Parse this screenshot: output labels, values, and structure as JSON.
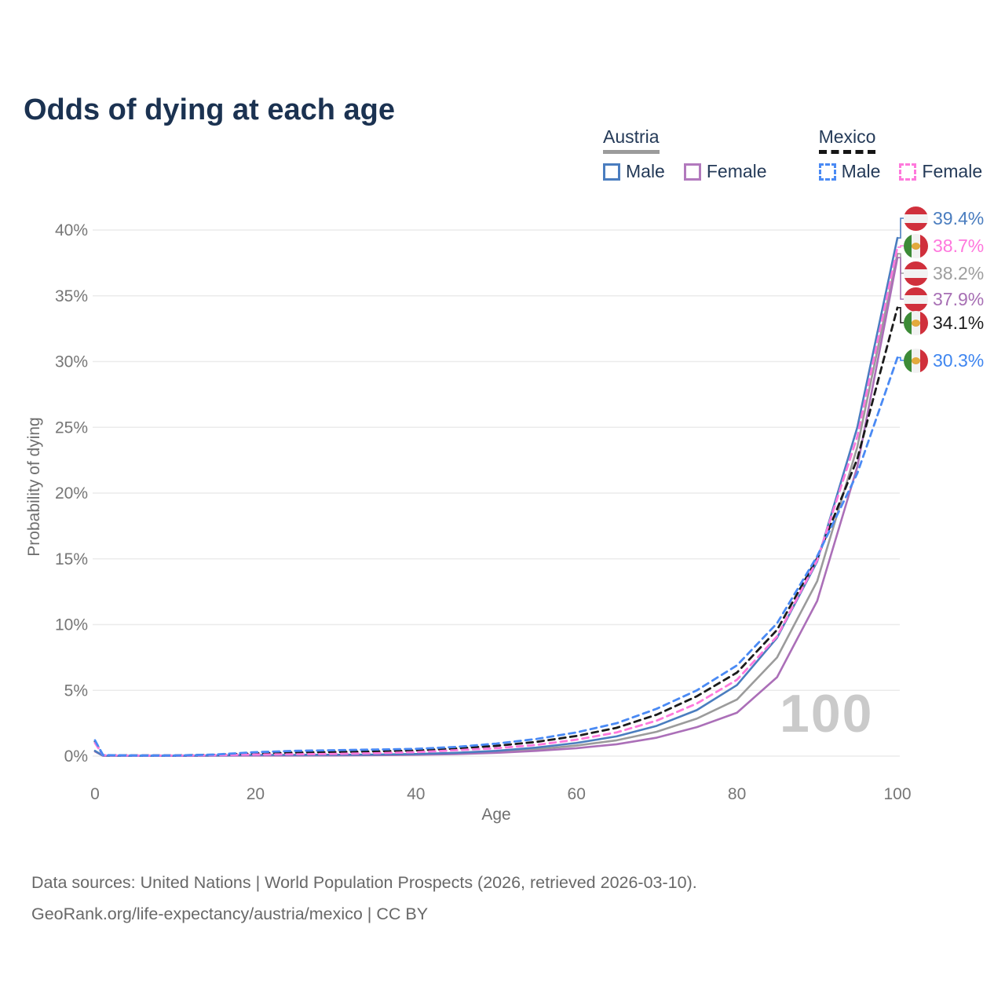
{
  "title": "Odds of dying at each age",
  "legend": {
    "austria": {
      "label": "Austria",
      "male": "Male",
      "female": "Female"
    },
    "mexico": {
      "label": "Mexico",
      "male": "Male",
      "female": "Female"
    }
  },
  "watermark": "100",
  "end_labels": [
    {
      "flag": "austria",
      "value": "39.4%",
      "color": "#4a7dbf"
    },
    {
      "flag": "mexico",
      "value": "38.7%",
      "color": "#ff77dd"
    },
    {
      "flag": "austria",
      "value": "38.2%",
      "color": "#9e9e9e"
    },
    {
      "flag": "austria",
      "value": "37.9%",
      "color": "#a76fb4"
    },
    {
      "flag": "mexico",
      "value": "34.1%",
      "color": "#1f1f1f"
    },
    {
      "flag": "mexico",
      "value": "30.3%",
      "color": "#3f86f0"
    }
  ],
  "footer": {
    "line1": "Data sources: United Nations | World Population Prospects (2026, retrieved 2026-03-10).",
    "line2": "GeoRank.org/life-expectancy/austria/mexico | CC BY"
  },
  "chart_data": {
    "type": "line",
    "title": "Odds of dying at each age",
    "xlabel": "Age",
    "ylabel": "Probability of dying",
    "xlim": [
      0,
      100
    ],
    "ylim": [
      0,
      42
    ],
    "xticks": [
      0,
      20,
      40,
      60,
      80,
      100
    ],
    "yticks": [
      0,
      5,
      10,
      15,
      20,
      25,
      30,
      35,
      40
    ],
    "ytick_labels": [
      "0%",
      "5%",
      "10%",
      "15%",
      "20%",
      "25%",
      "30%",
      "35%",
      "40%"
    ],
    "grid": "horizontal",
    "legend_position": "top-right",
    "x": [
      0,
      1,
      5,
      10,
      15,
      20,
      25,
      30,
      35,
      40,
      45,
      50,
      55,
      60,
      65,
      70,
      75,
      80,
      85,
      90,
      95,
      100
    ],
    "series": [
      {
        "name": "Austria — Both sexes",
        "country": "Austria",
        "sex": "all",
        "style": "solid",
        "color": "#9b9b9b",
        "end_label": "38.2%",
        "values": [
          0.37,
          0.03,
          0.02,
          0.02,
          0.04,
          0.06,
          0.07,
          0.08,
          0.1,
          0.13,
          0.2,
          0.32,
          0.52,
          0.8,
          1.2,
          1.85,
          2.85,
          4.3,
          7.5,
          13.3,
          23.5,
          38.2
        ]
      },
      {
        "name": "Austria — Female",
        "country": "Austria",
        "sex": "female",
        "style": "solid",
        "color": "#ab6fb8",
        "end_label": "37.9%",
        "values": [
          0.35,
          0.03,
          0.02,
          0.02,
          0.03,
          0.04,
          0.04,
          0.05,
          0.07,
          0.1,
          0.15,
          0.25,
          0.4,
          0.6,
          0.9,
          1.4,
          2.2,
          3.3,
          6.0,
          11.8,
          22.0,
          37.9
        ]
      },
      {
        "name": "Austria — Male",
        "country": "Austria",
        "sex": "male",
        "style": "solid",
        "color": "#4a7dbf",
        "end_label": "39.4%",
        "values": [
          0.4,
          0.03,
          0.02,
          0.02,
          0.05,
          0.09,
          0.09,
          0.1,
          0.12,
          0.16,
          0.25,
          0.4,
          0.65,
          1.0,
          1.5,
          2.3,
          3.5,
          5.4,
          9.0,
          14.8,
          25.0,
          39.4
        ]
      },
      {
        "name": "Mexico — Both sexes",
        "country": "Mexico",
        "sex": "all",
        "style": "dashed",
        "color": "#1b1b1b",
        "end_label": "34.1%",
        "values": [
          1.1,
          0.07,
          0.05,
          0.05,
          0.1,
          0.21,
          0.27,
          0.31,
          0.36,
          0.43,
          0.58,
          0.78,
          1.08,
          1.53,
          2.15,
          3.15,
          4.55,
          6.35,
          9.6,
          15.05,
          22.6,
          34.1
        ]
      },
      {
        "name": "Mexico — Female",
        "country": "Mexico",
        "sex": "female",
        "style": "dashed",
        "color": "#ff79dc",
        "end_label": "38.7%",
        "values": [
          1.0,
          0.06,
          0.04,
          0.04,
          0.07,
          0.12,
          0.14,
          0.17,
          0.22,
          0.3,
          0.45,
          0.6,
          0.85,
          1.25,
          1.8,
          2.7,
          4.0,
          5.8,
          9.1,
          14.9,
          24.3,
          38.7
        ]
      },
      {
        "name": "Mexico — Male",
        "country": "Mexico",
        "sex": "male",
        "style": "dashed",
        "color": "#4a8af4",
        "end_label": "30.3%",
        "values": [
          1.2,
          0.08,
          0.05,
          0.05,
          0.12,
          0.3,
          0.4,
          0.45,
          0.5,
          0.55,
          0.7,
          0.95,
          1.3,
          1.8,
          2.5,
          3.6,
          5.0,
          6.9,
          10.1,
          15.2,
          21.5,
          30.3
        ]
      }
    ]
  }
}
